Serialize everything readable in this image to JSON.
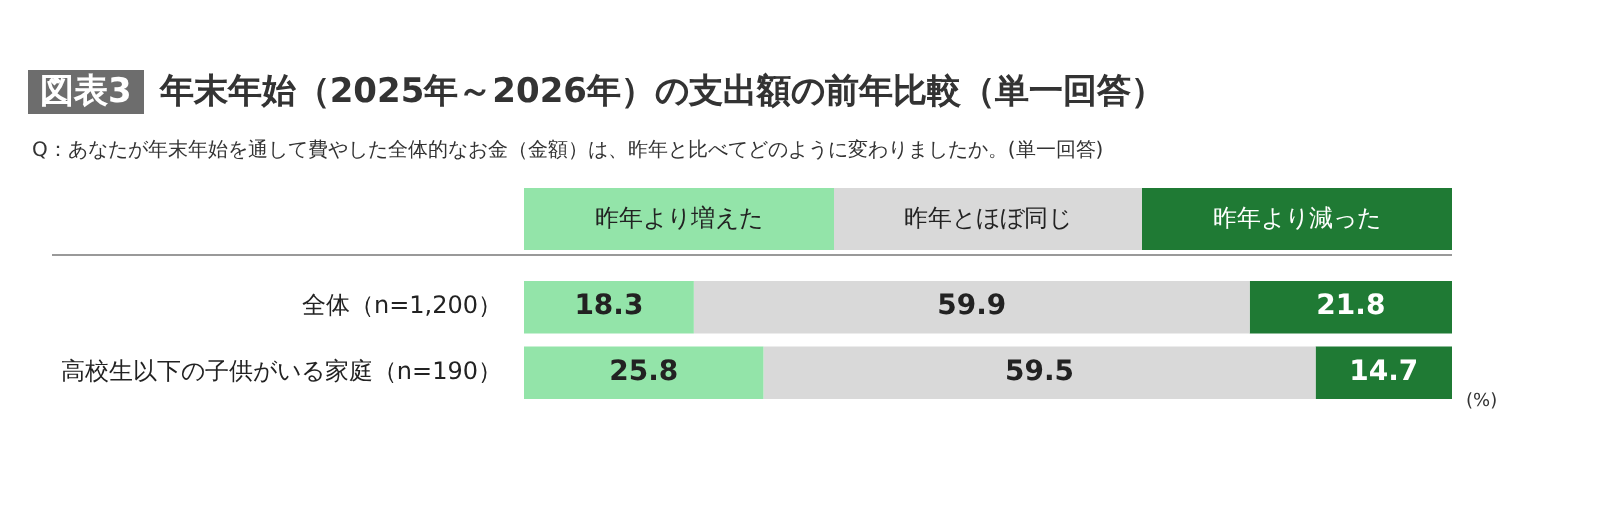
{
  "chart_data": {
    "type": "bar",
    "orientation": "horizontal",
    "stacked": true,
    "title": "図表3 年末年始（2025年～2026年）の支出額の前年比較（単一回答）",
    "subtitle": "Q：あなたが年末年始を通して費やした全体的なお金（金額）は、昨年と比べてどのように変わりましたか。(単一回答)",
    "categories": [
      "全体（n=1,200）",
      "高校生以下の子供がいる家庭（n=190）"
    ],
    "series": [
      {
        "name": "昨年より増えた",
        "color": "#93e4a9",
        "values": [
          18.3,
          25.8
        ]
      },
      {
        "name": "昨年とほぼ同じ",
        "color": "#d9d9d9",
        "values": [
          59.9,
          59.5
        ]
      },
      {
        "name": "昨年より減った",
        "color": "#1f7a34",
        "values": [
          21.8,
          14.7
        ]
      }
    ],
    "xlim": [
      0,
      100
    ],
    "tick_labels": "y",
    "legend": "top",
    "data_labels": true,
    "annotations": [
      "(%)"
    ]
  }
}
